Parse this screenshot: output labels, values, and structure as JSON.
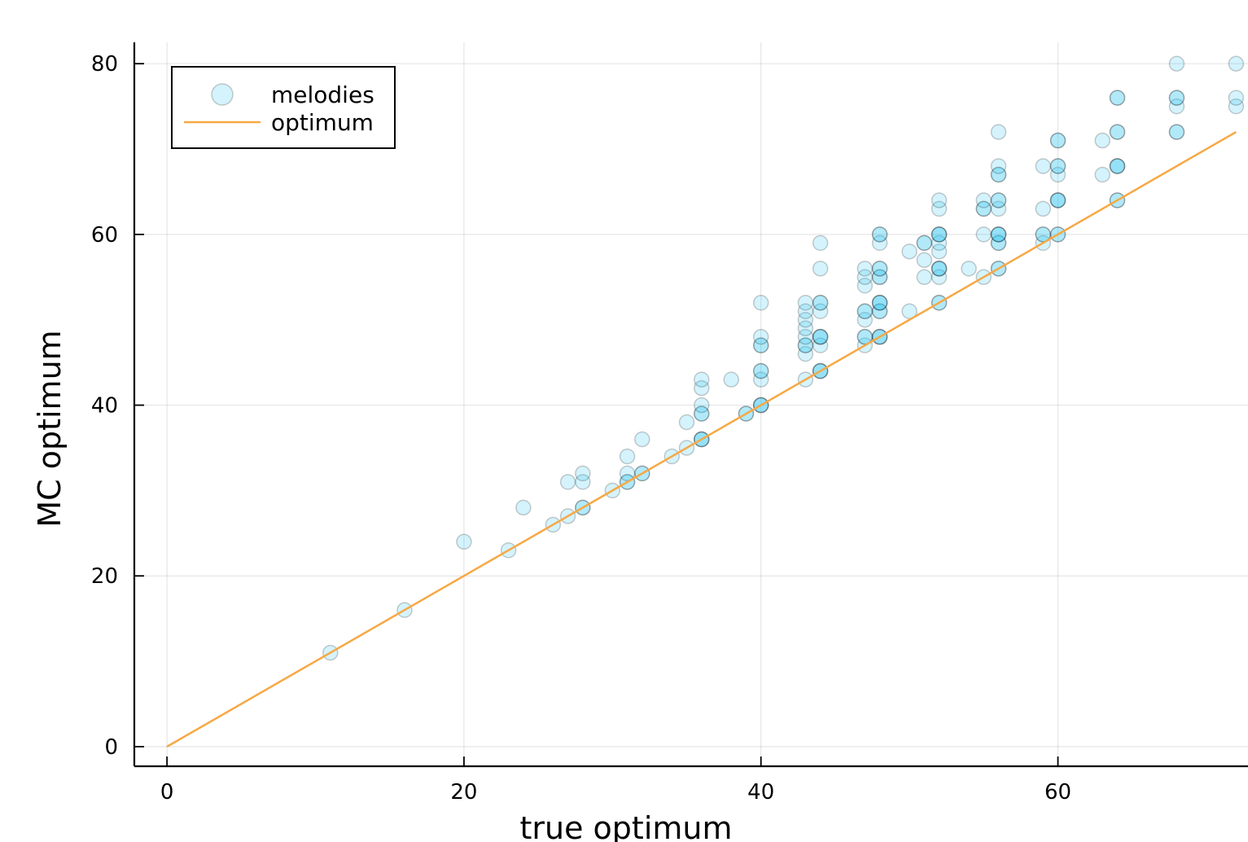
{
  "chart_data": {
    "type": "scatter",
    "xlabel": "true optimum",
    "ylabel": "MC optimum",
    "xlim": [
      -2.2,
      72.8
    ],
    "ylim": [
      -2.3,
      82.5
    ],
    "xticks": [
      0,
      20,
      40,
      60
    ],
    "yticks": [
      0,
      20,
      40,
      60,
      80
    ],
    "grid": true,
    "legend_position": "top-left",
    "legend": [
      "melodies",
      "optimum"
    ],
    "series": [
      {
        "name": "melodies",
        "kind": "scatter",
        "color": "#29C5EF",
        "opacity": 0.2,
        "points": [
          [
            11,
            11
          ],
          [
            16,
            16
          ],
          [
            20,
            24
          ],
          [
            23,
            23
          ],
          [
            24,
            28
          ],
          [
            26,
            26
          ],
          [
            27,
            27
          ],
          [
            27,
            31
          ],
          [
            28,
            28
          ],
          [
            28,
            28
          ],
          [
            28,
            31
          ],
          [
            28,
            32
          ],
          [
            30,
            30
          ],
          [
            31,
            31
          ],
          [
            31,
            31
          ],
          [
            31,
            32
          ],
          [
            31,
            34
          ],
          [
            32,
            32
          ],
          [
            32,
            32
          ],
          [
            32,
            36
          ],
          [
            34,
            34
          ],
          [
            35,
            35
          ],
          [
            35,
            38
          ],
          [
            36,
            36
          ],
          [
            36,
            36
          ],
          [
            36,
            36
          ],
          [
            36,
            39
          ],
          [
            36,
            39
          ],
          [
            36,
            40
          ],
          [
            36,
            42
          ],
          [
            36,
            43
          ],
          [
            38,
            43
          ],
          [
            39,
            39
          ],
          [
            39,
            39
          ],
          [
            40,
            40
          ],
          [
            40,
            40
          ],
          [
            40,
            40
          ],
          [
            40,
            43
          ],
          [
            40,
            44
          ],
          [
            40,
            44
          ],
          [
            40,
            47
          ],
          [
            40,
            47
          ],
          [
            40,
            48
          ],
          [
            40,
            52
          ],
          [
            43,
            43
          ],
          [
            43,
            46
          ],
          [
            43,
            47
          ],
          [
            43,
            47
          ],
          [
            43,
            48
          ],
          [
            43,
            49
          ],
          [
            43,
            50
          ],
          [
            43,
            51
          ],
          [
            43,
            52
          ],
          [
            44,
            44
          ],
          [
            44,
            44
          ],
          [
            44,
            44
          ],
          [
            44,
            47
          ],
          [
            44,
            48
          ],
          [
            44,
            48
          ],
          [
            44,
            48
          ],
          [
            44,
            51
          ],
          [
            44,
            52
          ],
          [
            44,
            52
          ],
          [
            44,
            56
          ],
          [
            44,
            59
          ],
          [
            47,
            47
          ],
          [
            47,
            48
          ],
          [
            47,
            48
          ],
          [
            47,
            50
          ],
          [
            47,
            51
          ],
          [
            47,
            51
          ],
          [
            47,
            54
          ],
          [
            47,
            55
          ],
          [
            47,
            56
          ],
          [
            48,
            48
          ],
          [
            48,
            48
          ],
          [
            48,
            48
          ],
          [
            48,
            51
          ],
          [
            48,
            51
          ],
          [
            48,
            52
          ],
          [
            48,
            52
          ],
          [
            48,
            52
          ],
          [
            48,
            55
          ],
          [
            48,
            55
          ],
          [
            48,
            56
          ],
          [
            48,
            56
          ],
          [
            48,
            59
          ],
          [
            48,
            60
          ],
          [
            48,
            60
          ],
          [
            50,
            51
          ],
          [
            50,
            58
          ],
          [
            51,
            55
          ],
          [
            51,
            57
          ],
          [
            51,
            59
          ],
          [
            51,
            59
          ],
          [
            52,
            52
          ],
          [
            52,
            52
          ],
          [
            52,
            55
          ],
          [
            52,
            56
          ],
          [
            52,
            56
          ],
          [
            52,
            56
          ],
          [
            52,
            58
          ],
          [
            52,
            59
          ],
          [
            52,
            60
          ],
          [
            52,
            60
          ],
          [
            52,
            60
          ],
          [
            52,
            63
          ],
          [
            52,
            64
          ],
          [
            54,
            56
          ],
          [
            55,
            55
          ],
          [
            55,
            60
          ],
          [
            55,
            63
          ],
          [
            55,
            63
          ],
          [
            55,
            64
          ],
          [
            56,
            56
          ],
          [
            56,
            56
          ],
          [
            56,
            59
          ],
          [
            56,
            59
          ],
          [
            56,
            60
          ],
          [
            56,
            60
          ],
          [
            56,
            60
          ],
          [
            56,
            63
          ],
          [
            56,
            64
          ],
          [
            56,
            64
          ],
          [
            56,
            67
          ],
          [
            56,
            67
          ],
          [
            56,
            68
          ],
          [
            56,
            72
          ],
          [
            59,
            59
          ],
          [
            59,
            60
          ],
          [
            59,
            60
          ],
          [
            59,
            63
          ],
          [
            59,
            68
          ],
          [
            60,
            60
          ],
          [
            60,
            60
          ],
          [
            60,
            64
          ],
          [
            60,
            64
          ],
          [
            60,
            64
          ],
          [
            60,
            67
          ],
          [
            60,
            68
          ],
          [
            60,
            68
          ],
          [
            60,
            71
          ],
          [
            60,
            71
          ],
          [
            63,
            67
          ],
          [
            63,
            71
          ],
          [
            64,
            64
          ],
          [
            64,
            64
          ],
          [
            64,
            68
          ],
          [
            64,
            68
          ],
          [
            64,
            68
          ],
          [
            64,
            72
          ],
          [
            64,
            72
          ],
          [
            64,
            76
          ],
          [
            64,
            76
          ],
          [
            68,
            72
          ],
          [
            68,
            72
          ],
          [
            68,
            75
          ],
          [
            68,
            76
          ],
          [
            68,
            76
          ],
          [
            68,
            80
          ],
          [
            72,
            75
          ],
          [
            72,
            76
          ],
          [
            72,
            80
          ]
        ]
      },
      {
        "name": "optimum",
        "kind": "line",
        "color": "#F7A844",
        "x": [
          0,
          72
        ],
        "y": [
          0,
          72
        ]
      }
    ]
  }
}
